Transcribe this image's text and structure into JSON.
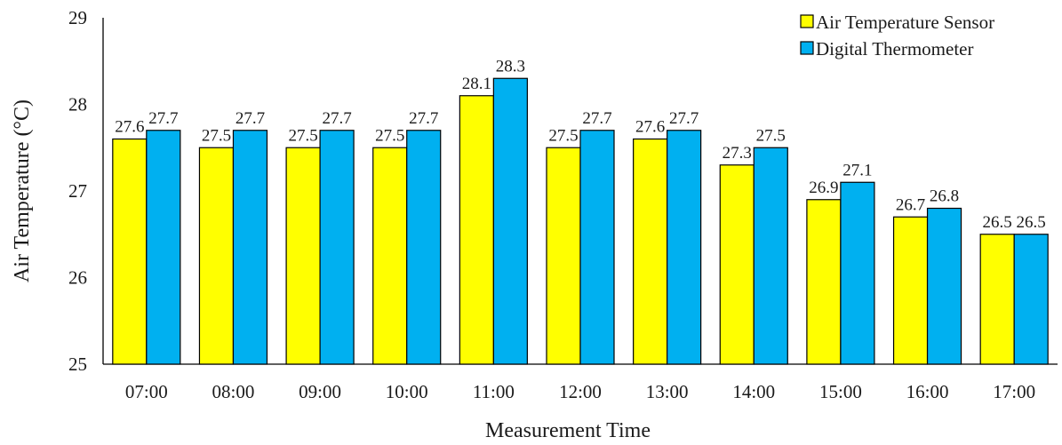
{
  "chart_data": {
    "type": "bar",
    "categories": [
      "07:00",
      "08:00",
      "09:00",
      "10:00",
      "11:00",
      "12:00",
      "13:00",
      "14:00",
      "15:00",
      "16:00",
      "17:00"
    ],
    "series": [
      {
        "name": "Air Temperature Sensor",
        "values": [
          27.6,
          27.5,
          27.5,
          27.5,
          28.1,
          27.5,
          27.6,
          27.3,
          26.9,
          26.7,
          26.5
        ]
      },
      {
        "name": "Digital Thermometer",
        "values": [
          27.7,
          27.7,
          27.7,
          27.7,
          28.3,
          27.7,
          27.7,
          27.5,
          27.1,
          26.8,
          26.5
        ]
      }
    ],
    "data_labels": [
      [
        "27.6",
        "27.5",
        "27.5",
        "27.5",
        "28.1",
        "27.5",
        "27.6",
        "27.3",
        "26.9",
        "26.7",
        "26.5"
      ],
      [
        "27.7",
        "27.7",
        "27.7",
        "27.7",
        "28.3",
        "27.7",
        "27.7",
        "27.5",
        "27.1",
        "26.8",
        "26.5"
      ]
    ],
    "title": "",
    "xlabel": "Measurement Time",
    "ylabel": "Air Temperature (°C)",
    "ylim": [
      25,
      29
    ],
    "yticks": [
      "25",
      "26",
      "27",
      "28",
      "29"
    ],
    "grid": false,
    "legend": "top-right",
    "colors": [
      "#ffff00",
      "#00b0f0"
    ]
  }
}
